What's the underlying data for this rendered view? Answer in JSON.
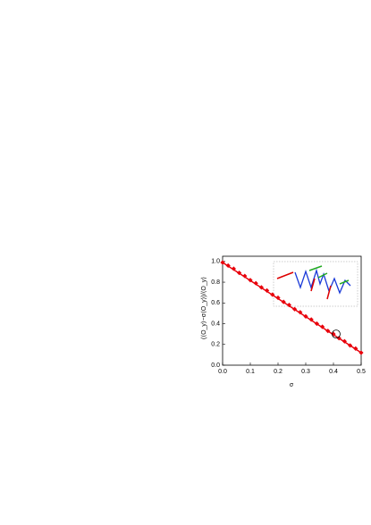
{
  "chart_data": {
    "type": "scatter",
    "x_label": "σ",
    "y_label": "(⟨O_y⟩−σ⟨O_y⟩)/⟨O_y⟩",
    "xlim": [
      0,
      0.5
    ],
    "ylim": [
      0,
      1.05
    ],
    "xticks": [
      {
        "value": 0,
        "label": "0.0"
      },
      0.1,
      0.2,
      0.3,
      0.4,
      0.5
    ],
    "yticks": [
      {
        "value": 0,
        "label": "0.0"
      },
      0.2,
      0.4,
      0.6,
      0.8,
      {
        "value": 1,
        "label": "1.0"
      }
    ],
    "series": [
      {
        "color": "#e8000b",
        "x": [
          0,
          0.02,
          0.04,
          0.06,
          0.08,
          0.1,
          0.12,
          0.14,
          0.16,
          0.18,
          0.2,
          0.22,
          0.24,
          0.26,
          0.28,
          0.3,
          0.32,
          0.34,
          0.36,
          0.38,
          0.4,
          0.42,
          0.44,
          0.46,
          0.48,
          0.5
        ],
        "values": [
          0.99,
          0.96,
          0.93,
          0.89,
          0.86,
          0.82,
          0.79,
          0.75,
          0.72,
          0.68,
          0.65,
          0.61,
          0.58,
          0.54,
          0.51,
          0.47,
          0.44,
          0.4,
          0.37,
          0.33,
          0.3,
          0.26,
          0.23,
          0.19,
          0.16,
          0.12
        ]
      },
      {
        "color": "#e8000b",
        "x": [
          0,
          0.5
        ],
        "values": [
          0.99,
          0.12
        ]
      }
    ]
  }
}
